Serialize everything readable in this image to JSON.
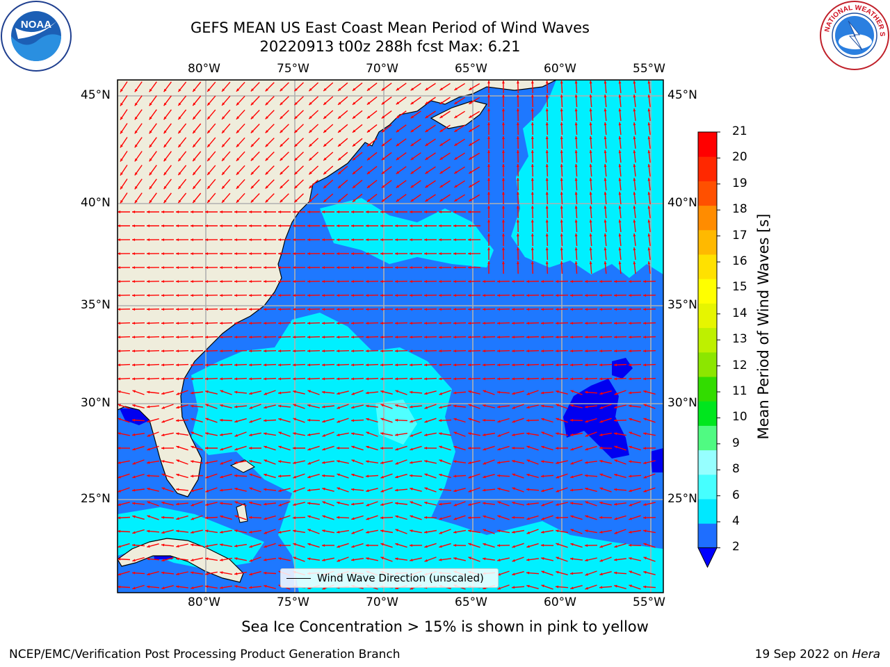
{
  "header": {
    "title_line1": "GEFS MEAN US East Coast Mean Period of Wind Waves",
    "title_line2": "20220913 t00z 288h fcst   Max: 6.21"
  },
  "map": {
    "top_lon_labels": [
      "80°W",
      "75°W",
      "70°W",
      "65°W",
      "60°W",
      "55°W"
    ],
    "bottom_lon_labels": [
      "80°W",
      "75°W",
      "70°W",
      "65°W",
      "60°W",
      "55°W"
    ],
    "left_lat_labels": [
      "45°N",
      "40°N",
      "35°N",
      "30°N",
      "25°N"
    ],
    "right_lat_labels": [
      "45°N",
      "40°N",
      "35°N",
      "30°N",
      "25°N"
    ],
    "legend_label": "Wind Wave Direction (unscaled)",
    "land_color": "#efeddc",
    "water_colors": [
      "#0000f0",
      "#1e78ff",
      "#00f0ff",
      "#50ffff"
    ],
    "arrow_color": "#ff0000"
  },
  "colorbar": {
    "title": "Mean Period of Wind Waves [s]",
    "ticks": [
      "2",
      "4",
      "6",
      "8",
      "9",
      "10",
      "11",
      "12",
      "13",
      "14",
      "15",
      "16",
      "17",
      "18",
      "19",
      "20",
      "21"
    ],
    "colors": [
      "#1e6eff",
      "#00e8ff",
      "#46ffff",
      "#96ffff",
      "#50fa82",
      "#00e61e",
      "#32dc00",
      "#8ce600",
      "#bef000",
      "#e6f500",
      "#ffff00",
      "#ffe100",
      "#ffb900",
      "#ff8c00",
      "#ff5000",
      "#ff2800",
      "#ff0000"
    ],
    "under_color": "#0000ff"
  },
  "footer": {
    "caption": "Sea Ice Concentration > 15% is shown in pink to yellow",
    "credit": "NCEP/EMC/Verification Post Processing Product Generation Branch",
    "date": "19 Sep 2022 on",
    "machine": "Hera"
  },
  "logos": {
    "noaa_text": "NOAA",
    "nws_text": "NATIONAL WEATHER SERVICE"
  }
}
